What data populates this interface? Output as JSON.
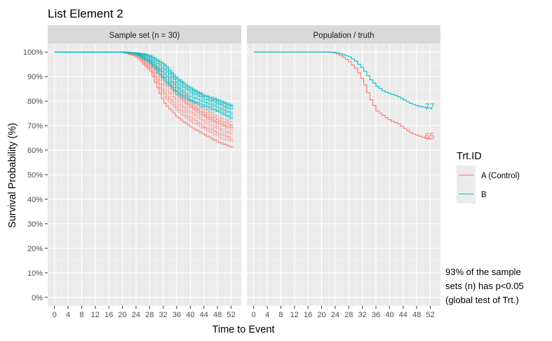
{
  "chart_data": {
    "type": "line",
    "title": "List Element 2",
    "xlabel": "Time to Event",
    "ylabel": "Survival Probability (%)",
    "xlim": [
      -2,
      55
    ],
    "ylim": [
      -3.5,
      103.5
    ],
    "x_ticks": [
      0,
      4,
      8,
      12,
      16,
      20,
      24,
      28,
      32,
      36,
      40,
      44,
      48,
      52
    ],
    "x_tick_labels": [
      "0",
      "4",
      "8",
      "12",
      "16",
      "20",
      "24",
      "28",
      "32",
      "36",
      "40",
      "44",
      "48",
      "52"
    ],
    "y_ticks": [
      0,
      10,
      20,
      30,
      40,
      50,
      60,
      70,
      80,
      90,
      100
    ],
    "y_tick_labels": [
      "0%",
      "10%",
      "20%",
      "30%",
      "40%",
      "50%",
      "60%",
      "70%",
      "80%",
      "90%",
      "100%"
    ],
    "grid": true,
    "legend": {
      "title": "Trt.ID",
      "position": "right",
      "entries": [
        {
          "label": "A (Control)",
          "color": "#F8766D"
        },
        {
          "label": "B",
          "color": "#00BFC4"
        }
      ]
    },
    "colors": {
      "A": "#F8766D",
      "B": "#00BFC4"
    },
    "panels": [
      {
        "strip": "Sample set (n = 30)",
        "n_sample_sets": 30,
        "series": [
          {
            "name": "A (Control)",
            "kind": "sample-sets",
            "x": [
              0,
              20,
              24,
              28,
              32,
              36,
              40,
              44,
              48,
              52
            ],
            "envelope_low": [
              100,
              100,
              98,
              92,
              79,
              73,
              69,
              66,
              63,
              61
            ],
            "envelope_high": [
              100,
              100,
              99.8,
              97,
              92,
              86,
              81,
              77,
              74,
              72
            ]
          },
          {
            "name": "B",
            "kind": "sample-sets",
            "x": [
              0,
              20,
              24,
              28,
              32,
              36,
              40,
              44,
              48,
              52
            ],
            "envelope_low": [
              100,
              100,
              99,
              95,
              88,
              82,
              79,
              77,
              75,
              72
            ],
            "envelope_high": [
              100,
              100,
              100,
              99,
              96,
              90,
              86,
              83,
              81,
              79
            ]
          }
        ]
      },
      {
        "strip": "Population / truth",
        "series": [
          {
            "name": "A (Control)",
            "x": [
              0,
              22,
              24,
              26,
              28,
              30,
              32,
              34,
              36,
              38,
              40,
              42,
              44,
              46,
              48,
              50,
              52
            ],
            "y": [
              100,
              100,
              99.5,
              98,
              96,
              93,
              88,
              81,
              76,
              74,
              72,
              71,
              69,
              67,
              66,
              65,
              64.5
            ]
          },
          {
            "name": "B",
            "x": [
              0,
              22,
              24,
              26,
              28,
              30,
              32,
              34,
              36,
              38,
              40,
              42,
              44,
              46,
              48,
              50,
              52
            ],
            "y": [
              100,
              100,
              99.8,
              99,
              98,
              96,
              93,
              89,
              86,
              84,
              83,
              82,
              80.5,
              79,
              78,
              77.5,
              77
            ]
          }
        ],
        "end_labels": [
          {
            "series": "B",
            "text": "77",
            "x": 52,
            "y": 77
          },
          {
            "series": "A (Control)",
            "text": "65",
            "x": 52,
            "y": 65
          }
        ]
      }
    ],
    "annotation": [
      "93% of the sample",
      "sets (n) has p<0.05",
      "(global test of Trt.)"
    ]
  }
}
